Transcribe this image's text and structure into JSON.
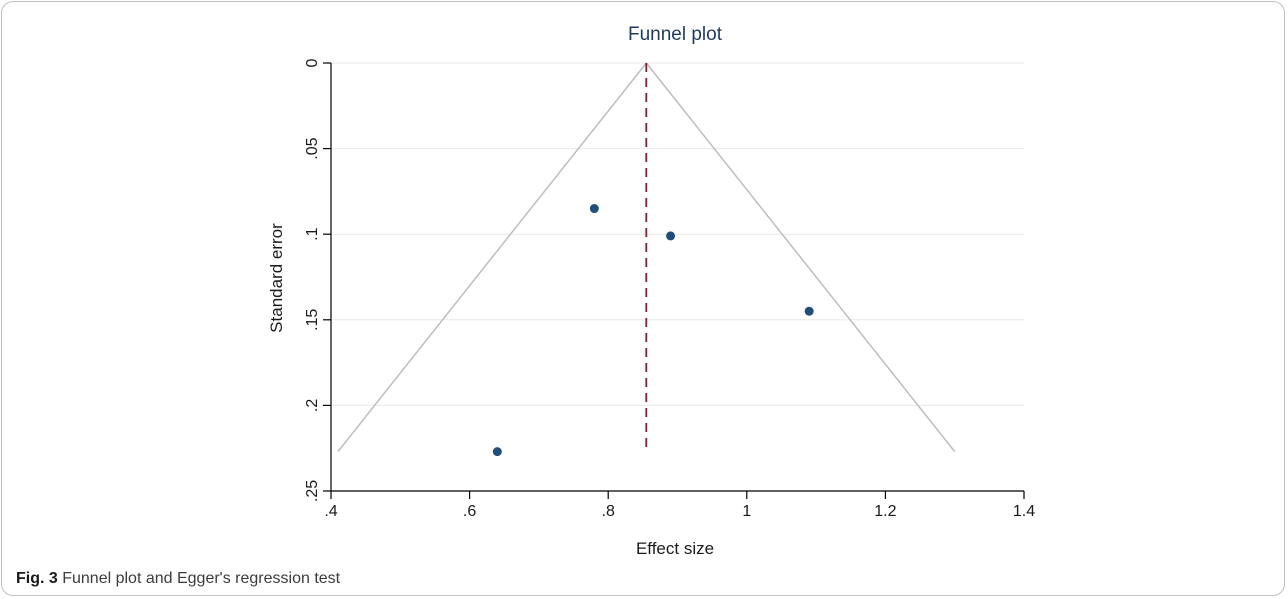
{
  "chart_data": {
    "type": "scatter",
    "title": "Funnel plot",
    "xlabel": "Effect size",
    "ylabel": "Standard error",
    "xlim": [
      0.4,
      1.4
    ],
    "ylim": [
      0,
      0.25
    ],
    "y_axis_reversed": true,
    "x_ticks": [
      0.4,
      0.6,
      0.8,
      1.0,
      1.2,
      1.4
    ],
    "x_tick_labels": [
      ".4",
      ".6",
      ".8",
      "1",
      "1.2",
      "1.4"
    ],
    "y_ticks": [
      0,
      0.05,
      0.1,
      0.15,
      0.2,
      0.25
    ],
    "y_tick_labels": [
      "0",
      ".05",
      ".1",
      ".15",
      ".2",
      ".25"
    ],
    "grid": "horizontal",
    "points": [
      {
        "x": 0.78,
        "y": 0.085
      },
      {
        "x": 0.89,
        "y": 0.101
      },
      {
        "x": 1.09,
        "y": 0.145
      },
      {
        "x": 0.64,
        "y": 0.227
      }
    ],
    "pooled_effect": 0.855,
    "funnel": {
      "apex": {
        "x": 0.855,
        "y": 0
      },
      "left_base": {
        "x": 0.41,
        "y": 0.227
      },
      "right_base": {
        "x": 1.3,
        "y": 0.227
      }
    },
    "colors": {
      "points": "#1f4e79",
      "funnel": "#bdbdbd",
      "pooled_line": "#8b1a2b",
      "grid": "#e8e8e8",
      "title": "#1f3a5f"
    }
  },
  "caption": {
    "label": "Fig. 3",
    "text": "Funnel plot and Egger's regression test"
  }
}
